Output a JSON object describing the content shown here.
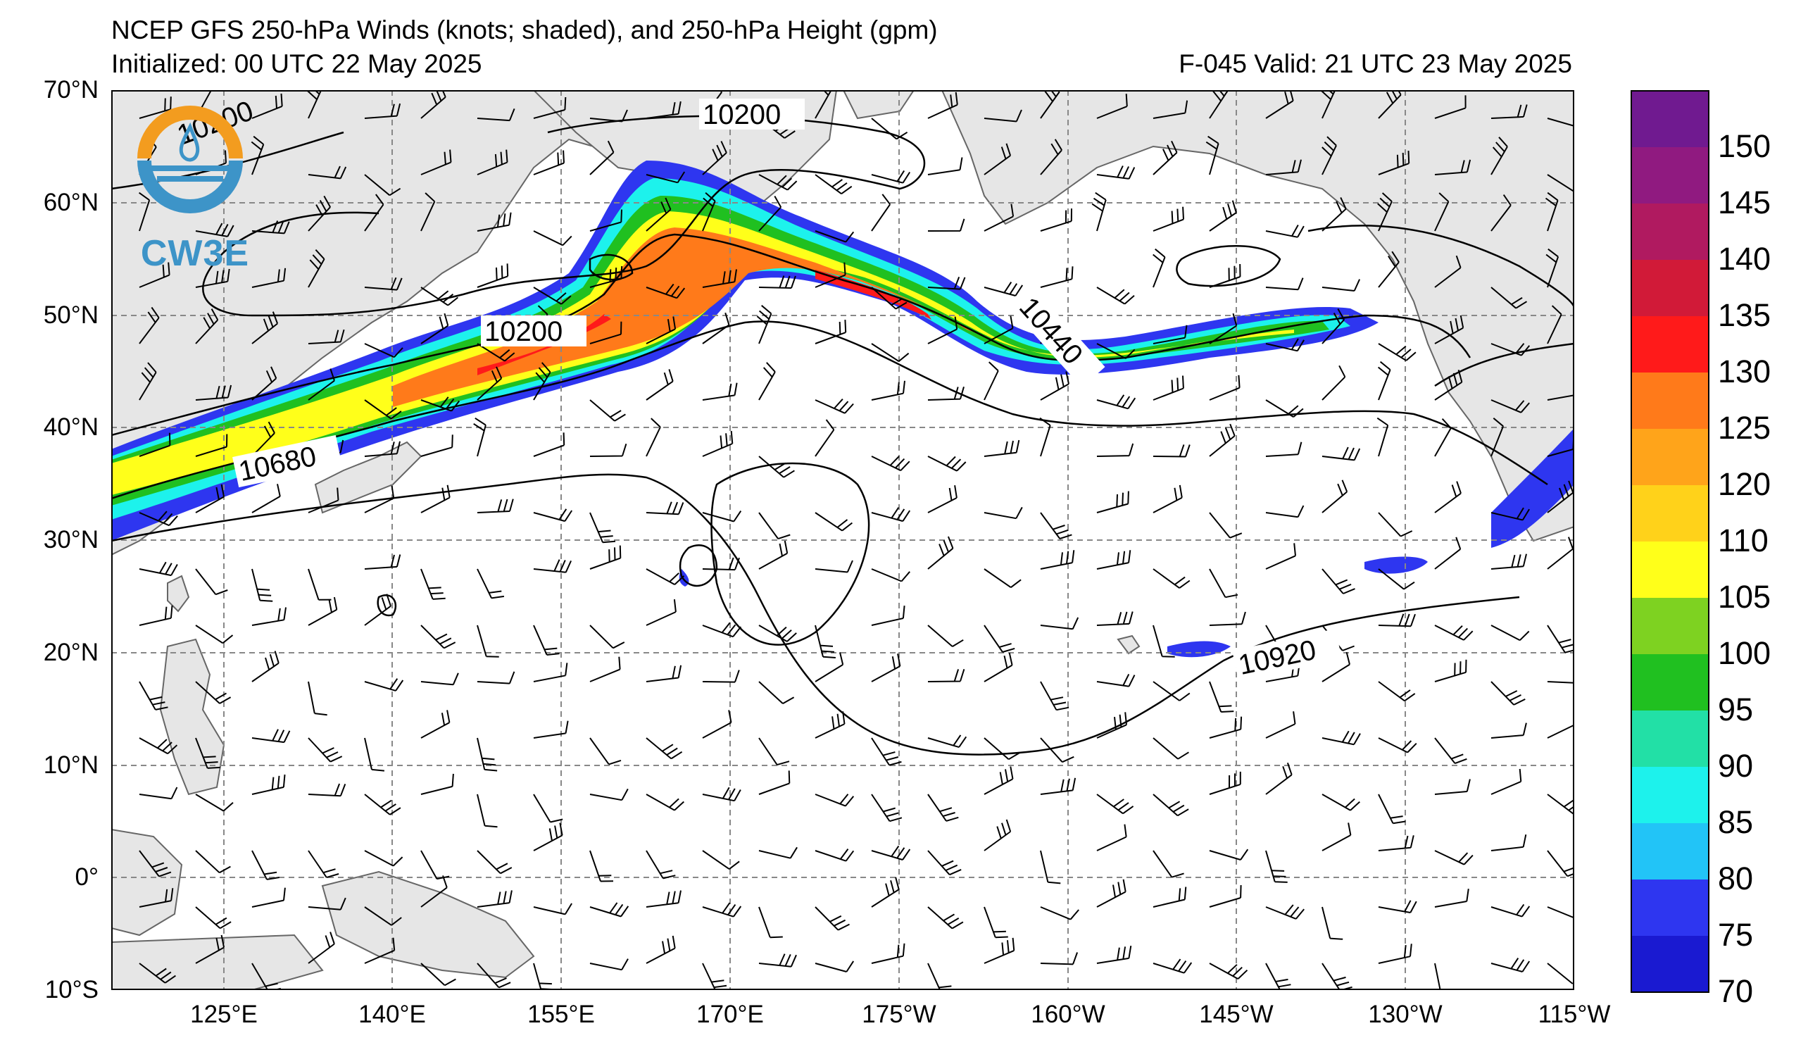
{
  "header": {
    "title": "NCEP GFS 250-hPa Winds (knots; shaded), and 250-hPa Height (gpm)",
    "initialized": "Initialized: 00 UTC 22 May 2025",
    "valid": "F-045  Valid: 21 UTC 23 May 2025"
  },
  "logo": {
    "text": "CW3E",
    "icon": "cw3e-water-drop-icon"
  },
  "map": {
    "projection": "cylindrical",
    "lon_range": [
      "115°E",
      "115°W"
    ],
    "lat_range": [
      "10°S",
      "70°N"
    ],
    "grid": "dashed",
    "lat_ticks": [
      "70°N",
      "60°N",
      "50°N",
      "40°N",
      "30°N",
      "20°N",
      "10°N",
      "0°",
      "10°S"
    ],
    "lon_ticks": [
      "125°E",
      "140°E",
      "155°E",
      "170°E",
      "175°W",
      "160°W",
      "145°W",
      "130°W",
      "115°W"
    ],
    "contour_labels": [
      "10200",
      "10200",
      "10200",
      "10680",
      "10440",
      "10920"
    ],
    "land_color": "#e6e6e6",
    "ocean_color": "#ffffff"
  },
  "colorbar": {
    "levels": [
      70,
      75,
      80,
      85,
      90,
      95,
      100,
      105,
      110,
      120,
      125,
      130,
      135,
      140,
      145,
      150
    ],
    "labels": [
      "150",
      "145",
      "140",
      "135",
      "130",
      "125",
      "120",
      "110",
      "105",
      "100",
      "95",
      "90",
      "85",
      "80",
      "75",
      "70"
    ],
    "colors": [
      "#1a1ad1",
      "#2e36f0",
      "#22c4f7",
      "#1df2ec",
      "#22e0a6",
      "#20c020",
      "#7ed221",
      "#ffff1a",
      "#ffd21a",
      "#ffa41a",
      "#ff7a1a",
      "#ff1a1a",
      "#d11a38",
      "#b01a60",
      "#901a80",
      "#701a90"
    ]
  }
}
